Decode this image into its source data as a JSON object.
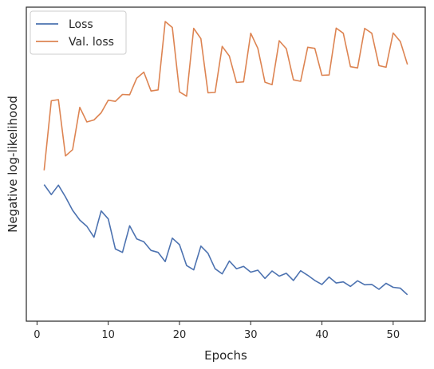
{
  "chart_data": {
    "type": "line",
    "xlabel": "Epochs",
    "ylabel": "Negative log-likelihood",
    "xlim": [
      -1.5,
      54.5
    ],
    "ylim": [
      0,
      1
    ],
    "xticks": [
      0,
      10,
      20,
      30,
      40,
      50
    ],
    "y_ticks_labeled": false,
    "grid": false,
    "legend": "top-left",
    "x": [
      1,
      2,
      3,
      4,
      5,
      6,
      7,
      8,
      9,
      10,
      11,
      12,
      13,
      14,
      15,
      16,
      17,
      18,
      19,
      20,
      21,
      22,
      23,
      24,
      25,
      26,
      27,
      28,
      29,
      30,
      31,
      32,
      33,
      34,
      35,
      36,
      37,
      38,
      39,
      40,
      41,
      42,
      43,
      44,
      45,
      46,
      47,
      48,
      49,
      50,
      51,
      52
    ],
    "series": [
      {
        "name": "Loss",
        "color": "#4c72b0",
        "values": [
          0.43,
          0.395,
          0.428,
          0.387,
          0.34,
          0.306,
          0.284,
          0.246,
          0.338,
          0.31,
          0.205,
          0.193,
          0.286,
          0.24,
          0.23,
          0.2,
          0.193,
          0.161,
          0.243,
          0.22,
          0.147,
          0.132,
          0.215,
          0.19,
          0.136,
          0.118,
          0.163,
          0.136,
          0.144,
          0.124,
          0.131,
          0.102,
          0.128,
          0.11,
          0.12,
          0.095,
          0.129,
          0.113,
          0.095,
          0.081,
          0.107,
          0.086,
          0.09,
          0.074,
          0.094,
          0.08,
          0.081,
          0.064,
          0.085,
          0.071,
          0.068,
          0.045
        ]
      },
      {
        "name": "Val. loss",
        "color": "#dd8452",
        "values": [
          0.48,
          0.723,
          0.727,
          0.53,
          0.552,
          0.7,
          0.649,
          0.656,
          0.681,
          0.725,
          0.721,
          0.745,
          0.744,
          0.802,
          0.823,
          0.757,
          0.761,
          1.0,
          0.979,
          0.754,
          0.739,
          0.976,
          0.94,
          0.751,
          0.752,
          0.913,
          0.879,
          0.787,
          0.789,
          0.959,
          0.906,
          0.788,
          0.779,
          0.933,
          0.905,
          0.796,
          0.791,
          0.91,
          0.906,
          0.812,
          0.813,
          0.977,
          0.959,
          0.842,
          0.838,
          0.976,
          0.959,
          0.846,
          0.84,
          0.96,
          0.93,
          0.85
        ]
      }
    ]
  }
}
